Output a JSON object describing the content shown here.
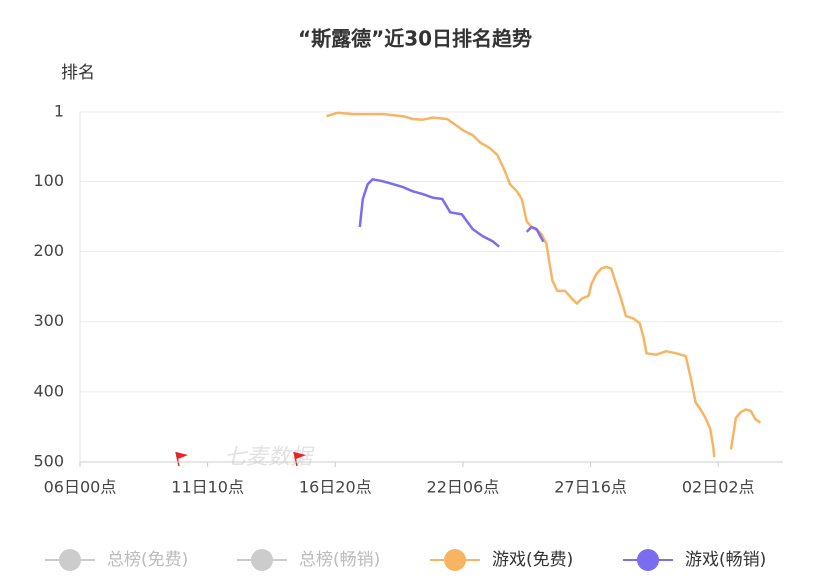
{
  "chart_data": {
    "type": "line",
    "title": "“斯露德”近30日排名趋势",
    "y_label": "排名",
    "watermark": "七麦数据",
    "inverse_y": true,
    "grid": true,
    "ylim": [
      1,
      500
    ],
    "yticks": [
      1,
      100,
      200,
      300,
      400,
      500
    ],
    "xlim": [
      0,
      716
    ],
    "xticks": [
      {
        "value": 0,
        "label": "06日00点"
      },
      {
        "value": 130,
        "label": "11日10点"
      },
      {
        "value": 260,
        "label": "16日20点"
      },
      {
        "value": 390,
        "label": "22日06点"
      },
      {
        "value": 520,
        "label": "27日16点"
      },
      {
        "value": 650,
        "label": "02日02点"
      }
    ],
    "series": [
      {
        "name": "总榜(免费)",
        "color": "#cccccc",
        "x": [],
        "values": []
      },
      {
        "name": "总榜(畅销)",
        "color": "#cccccc",
        "x": [],
        "values": []
      },
      {
        "name": "游戏(免费)",
        "color": "#f7b563",
        "x": [
          251,
          263,
          278,
          309,
          329,
          339,
          349,
          359,
          374,
          384,
          391,
          400,
          408,
          417,
          425,
          432,
          438,
          445,
          450,
          455,
          460,
          467,
          470,
          475,
          481,
          486,
          494,
          501,
          506,
          511,
          518,
          521,
          526,
          531,
          536,
          541,
          546,
          551,
          556,
          563,
          570,
          574,
          577,
          587,
          597,
          607,
          617,
          622,
          627,
          632,
          637,
          642,
          645,
          646,
          null,
          663,
          668,
          673,
          678,
          683,
          688,
          693
        ],
        "values": [
          7,
          2,
          4,
          4,
          7,
          11,
          12,
          9,
          11,
          21,
          28,
          34,
          45,
          52,
          62,
          83,
          104,
          114,
          125,
          157,
          165,
          171,
          175,
          189,
          241,
          256,
          256,
          267,
          274,
          267,
          263,
          246,
          232,
          224,
          222,
          224,
          246,
          267,
          292,
          295,
          302,
          323,
          345,
          347,
          342,
          345,
          349,
          380,
          415,
          425,
          437,
          453,
          479,
          493,
          null,
          482,
          437,
          429,
          425,
          427,
          439,
          444
        ]
      },
      {
        "name": "游戏(畅销)",
        "color": "#7b6cf0",
        "x": [
          285,
          288,
          293,
          298,
          309,
          319,
          329,
          339,
          349,
          359,
          369,
          377,
          389,
          400,
          410,
          420,
          427,
          null,
          455,
          460,
          465,
          472
        ],
        "values": [
          165,
          125,
          104,
          97,
          100,
          104,
          108,
          114,
          118,
          123,
          125,
          144,
          147,
          168,
          178,
          185,
          193,
          null,
          172,
          165,
          168,
          186
        ]
      }
    ]
  }
}
